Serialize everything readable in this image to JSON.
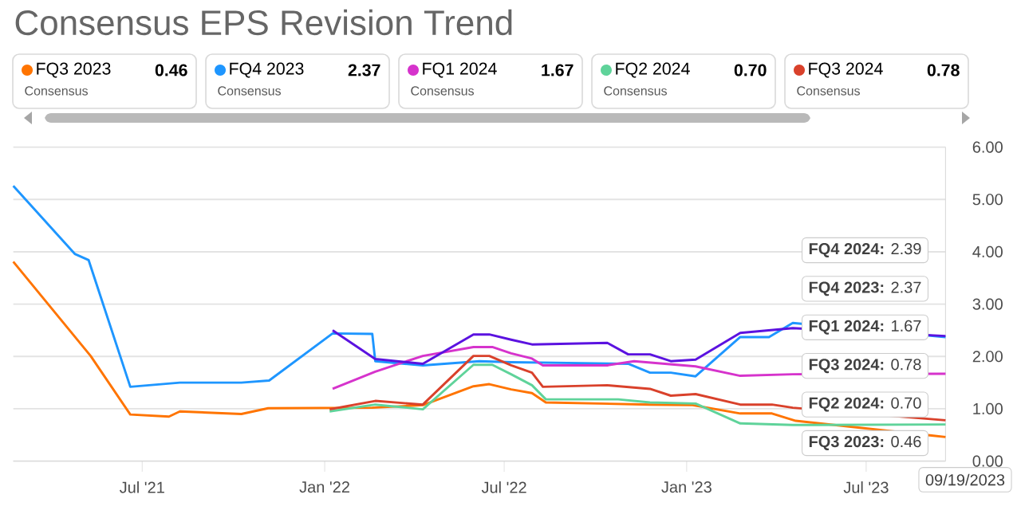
{
  "chart_data": {
    "type": "line",
    "title": "Consensus EPS Revision Trend",
    "xlim": [
      "2021-02-21",
      "2023-09-19"
    ],
    "xticks": [
      {
        "value": "2021-07-01",
        "label": "Jul '21"
      },
      {
        "value": "2022-01-01",
        "label": "Jan '22"
      },
      {
        "value": "2022-07-01",
        "label": "Jul '22"
      },
      {
        "value": "2023-01-01",
        "label": "Jan '23"
      },
      {
        "value": "2023-07-01",
        "label": "Jul '23"
      }
    ],
    "ylim": [
      0,
      6
    ],
    "yticks": [
      {
        "value": 0,
        "label": "0.00"
      },
      {
        "value": 1,
        "label": "1.00"
      },
      {
        "value": 2,
        "label": "2.00"
      },
      {
        "value": 3,
        "label": "3.00"
      },
      {
        "value": 4,
        "label": "4.00"
      },
      {
        "value": 5,
        "label": "5.00"
      },
      {
        "value": 6,
        "label": "6.00"
      }
    ],
    "grid": "y",
    "legend": "top",
    "marker": "none",
    "line_style": "solid",
    "series": [
      {
        "name": "FQ3 2023",
        "color": "#ff7400",
        "x": [
          "2021-02-21",
          "2021-05-10",
          "2021-06-19",
          "2021-07-28",
          "2021-08-08",
          "2021-10-09",
          "2021-11-05",
          "2022-02-18",
          "2022-04-10",
          "2022-05-31",
          "2022-06-16",
          "2022-07-08",
          "2022-07-29",
          "2022-08-12",
          "2022-11-25",
          "2023-01-07",
          "2023-02-24",
          "2023-03-28",
          "2023-04-21",
          "2023-09-05",
          "2023-09-19"
        ],
        "values": [
          3.81,
          2.01,
          0.89,
          0.85,
          0.95,
          0.9,
          1.01,
          1.02,
          1.07,
          1.43,
          1.47,
          1.37,
          1.3,
          1.12,
          1.08,
          1.07,
          0.91,
          0.91,
          0.77,
          0.49,
          0.46
        ]
      },
      {
        "name": "FQ4 2023",
        "color": "#1e96ff",
        "x": [
          "2021-02-21",
          "2021-04-24",
          "2021-05-08",
          "2021-06-19",
          "2021-08-08",
          "2021-10-09",
          "2021-11-06",
          "2022-01-09",
          "2022-02-18",
          "2022-02-21",
          "2022-04-10",
          "2022-06-06",
          "2022-07-08",
          "2022-11-03",
          "2022-11-25",
          "2022-12-16",
          "2023-01-10",
          "2023-02-24",
          "2023-03-25",
          "2023-04-18",
          "2023-09-19"
        ],
        "values": [
          5.26,
          3.96,
          3.84,
          1.42,
          1.5,
          1.5,
          1.54,
          2.44,
          2.43,
          1.91,
          1.83,
          1.91,
          1.89,
          1.86,
          1.69,
          1.69,
          1.62,
          2.37,
          2.37,
          2.64,
          2.37
        ]
      },
      {
        "name": "FQ1 2024",
        "color": "#d633cc",
        "x": [
          "2022-01-09",
          "2022-02-21",
          "2022-04-10",
          "2022-05-31",
          "2022-06-19",
          "2022-07-08",
          "2022-07-29",
          "2022-08-09",
          "2022-10-13",
          "2022-11-09",
          "2023-01-10",
          "2023-02-24",
          "2023-04-18",
          "2023-09-19"
        ],
        "values": [
          1.38,
          1.71,
          2.01,
          2.18,
          2.18,
          2.06,
          1.96,
          1.83,
          1.83,
          1.91,
          1.81,
          1.63,
          1.66,
          1.67
        ]
      },
      {
        "name": "FQ2 2024",
        "color": "#5fd39a",
        "x": [
          "2022-01-06",
          "2022-02-21",
          "2022-04-10",
          "2022-05-31",
          "2022-06-19",
          "2022-07-08",
          "2022-07-29",
          "2022-08-12",
          "2022-10-24",
          "2022-11-25",
          "2023-01-10",
          "2023-02-24",
          "2023-04-18",
          "2023-09-19"
        ],
        "values": [
          0.95,
          1.08,
          0.99,
          1.84,
          1.84,
          1.66,
          1.45,
          1.18,
          1.18,
          1.12,
          1.1,
          0.72,
          0.69,
          0.7
        ]
      },
      {
        "name": "FQ3 2024",
        "color": "#d9412b",
        "x": [
          "2022-01-06",
          "2022-02-21",
          "2022-04-10",
          "2022-05-31",
          "2022-06-16",
          "2022-07-08",
          "2022-07-29",
          "2022-08-09",
          "2022-10-13",
          "2022-11-25",
          "2022-12-16",
          "2023-01-10",
          "2023-02-24",
          "2023-03-28",
          "2023-04-18",
          "2023-09-19"
        ],
        "values": [
          0.99,
          1.15,
          1.08,
          2.01,
          2.01,
          1.83,
          1.69,
          1.42,
          1.45,
          1.38,
          1.25,
          1.28,
          1.08,
          1.08,
          1.02,
          0.78
        ]
      },
      {
        "color": "#5b12e0",
        "x": [
          "2022-01-09",
          "2022-02-21",
          "2022-04-10",
          "2022-05-31",
          "2022-06-16",
          "2022-07-08",
          "2022-07-29",
          "2022-10-13",
          "2022-11-03",
          "2022-11-25",
          "2022-12-16",
          "2023-01-10",
          "2023-02-24",
          "2023-04-18",
          "2023-09-19"
        ],
        "values": [
          2.5,
          1.95,
          1.86,
          2.42,
          2.42,
          2.32,
          2.23,
          2.26,
          2.04,
          2.04,
          1.91,
          1.94,
          2.45,
          2.54,
          2.39
        ]
      }
    ],
    "annotations": [
      "0.46",
      "Consensus",
      "2.37",
      "Consensus",
      "1.67",
      "Consensus",
      "0.70",
      "Consensus",
      "0.78",
      "Consensus",
      "**FQ4 2024:** 2.39",
      "**FQ4 2023:** 2.37",
      "**FQ1 2024:** 1.67",
      "**FQ3 2024:** 0.78",
      "**FQ2 2024:** 0.70",
      "**FQ3 2023:** 0.46",
      "09/19/2023"
    ]
  }
}
